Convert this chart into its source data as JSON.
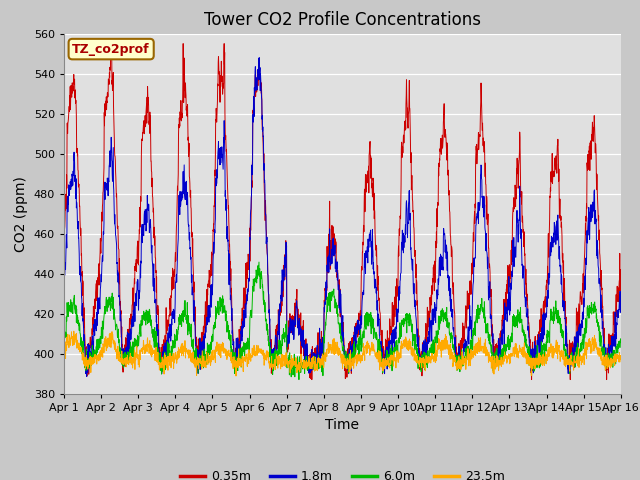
{
  "title": "Tower CO2 Profile Concentrations",
  "xlabel": "Time",
  "ylabel": "CO2 (ppm)",
  "ylim": [
    380,
    560
  ],
  "yticks": [
    380,
    400,
    420,
    440,
    460,
    480,
    500,
    520,
    540,
    560
  ],
  "xtick_labels": [
    "Apr 1",
    "Apr 2",
    "Apr 3",
    "Apr 4",
    "Apr 5",
    "Apr 6",
    "Apr 7",
    "Apr 8",
    "Apr 9",
    "Apr 10",
    "Apr 11",
    "Apr 12",
    "Apr 13",
    "Apr 14",
    "Apr 15",
    "Apr 16"
  ],
  "legend_label": "TZ_co2prof",
  "series_labels": [
    "0.35m",
    "1.8m",
    "6.0m",
    "23.5m"
  ],
  "series_colors": [
    "#cc0000",
    "#0000cc",
    "#00bb00",
    "#ffaa00"
  ],
  "background_color": "#c8c8c8",
  "plot_bg_color": "#e0e0e0",
  "title_fontsize": 12,
  "axis_fontsize": 10,
  "tick_fontsize": 8,
  "legend_fontsize": 9,
  "days": 15,
  "points_per_day": 144,
  "base_co2": 400,
  "seed": 7
}
